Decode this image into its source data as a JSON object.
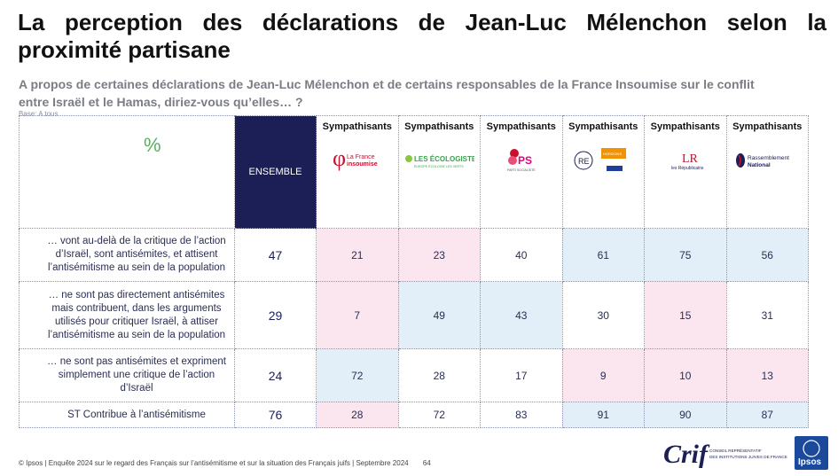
{
  "title": "La perception des déclarations de Jean-Luc Mélenchon selon la proximité partisane",
  "subtitle": "A propos de certaines déclarations de Jean-Luc Mélenchon et de certains responsables de la France Insoumise sur le conflit entre Israël et le Hamas, diriez-vous qu’elles… ?",
  "base": "Base: A tous",
  "percent_label": "%",
  "ensemble_label": "ENSEMBLE",
  "sympathisants_label": "Sympathisants",
  "party_logos": [
    {
      "name": "lfi-logo",
      "text_a": "La France",
      "text_b": "insoumise"
    },
    {
      "name": "ecologistes-logo",
      "text_a": "LES ÉCOLOGISTES",
      "text_b": "EUROPE ÉCOLOGIE LES VERTS"
    },
    {
      "name": "ps-logo",
      "text_a": "PS",
      "text_b": "PARTI SOCIALISTE"
    },
    {
      "name": "renaissance-logo",
      "text_a": "RE",
      "text_b": "HORIZONS"
    },
    {
      "name": "lr-logo",
      "text_a": "LR",
      "text_b": "les Républicains"
    },
    {
      "name": "rn-logo",
      "text_a": "Rassemblement",
      "text_b": "National"
    }
  ],
  "colors": {
    "navy": "#1b1f56",
    "pink": "#fbe5ee",
    "blue": "#e2eff8",
    "green": "#5aaf60"
  },
  "chart_data": {
    "type": "table",
    "columns": [
      "ENSEMBLE",
      "Sympathisants La France insoumise",
      "Sympathisants Les Écologistes",
      "Sympathisants PS",
      "Sympathisants Renaissance / Horizons",
      "Sympathisants Les Républicains",
      "Sympathisants Rassemblement National"
    ],
    "rows": [
      {
        "label": "… vont au-delà de la critique de l’action d’Israël, sont antisémites, et attisent l’antisémitisme au sein de la population",
        "total": 47,
        "values": [
          21,
          23,
          40,
          61,
          75,
          56
        ],
        "shade": [
          "pink",
          "pink",
          "white",
          "blue",
          "blue",
          "blue"
        ]
      },
      {
        "label": "… ne sont pas directement antisémites mais contribuent, dans les arguments utilisés pour critiquer Israël, à attiser l’antisémitisme au sein de la population",
        "total": 29,
        "values": [
          7,
          49,
          43,
          30,
          15,
          31
        ],
        "shade": [
          "pink",
          "blue",
          "blue",
          "white",
          "pink",
          "white"
        ]
      },
      {
        "label": "… ne sont pas antisémites et expriment simplement une critique de l’action d’Israël",
        "total": 24,
        "values": [
          72,
          28,
          17,
          9,
          10,
          13
        ],
        "shade": [
          "blue",
          "white",
          "white",
          "pink",
          "pink",
          "pink"
        ]
      },
      {
        "label": "ST Contribue à l’antisémitisme",
        "total": 76,
        "values": [
          28,
          72,
          83,
          91,
          90,
          87
        ],
        "shade": [
          "pink",
          "white",
          "white",
          "blue",
          "blue",
          "blue"
        ]
      }
    ]
  },
  "footer": {
    "source": "© Ipsos | Enquête 2024 sur le regard des Français sur l’antisémitisme et sur la situation des Français juifs | Septembre 2024",
    "page": "64"
  },
  "crif": {
    "name": "Crif",
    "line1": "CONSEIL REPRÉSENTATIF",
    "line2": "DES INSTITUTIONS JUIVES DE FRANCE"
  },
  "ipsos": {
    "name": "Ipsos"
  }
}
